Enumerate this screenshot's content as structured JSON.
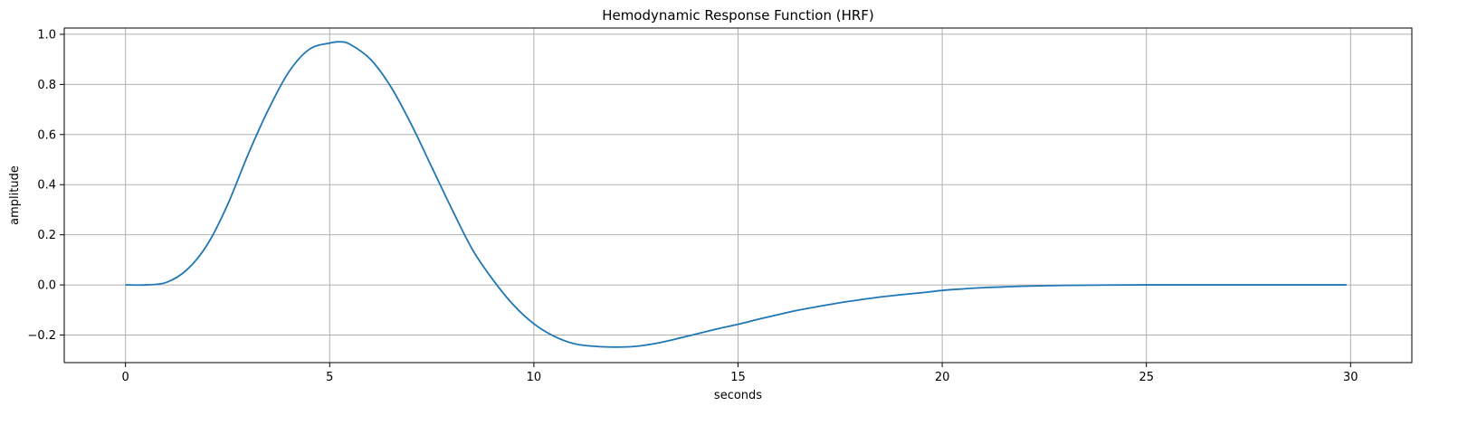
{
  "chart_data": {
    "type": "line",
    "title": "Hemodynamic Response Function (HRF)",
    "xlabel": "seconds",
    "ylabel": "amplitude",
    "xlim": [
      -1.5,
      31.5
    ],
    "ylim": [
      -0.31,
      1.025
    ],
    "xticks": [
      0,
      5,
      10,
      15,
      20,
      25,
      30
    ],
    "xtick_labels": [
      "0",
      "5",
      "10",
      "15",
      "20",
      "25",
      "30"
    ],
    "yticks": [
      -0.2,
      0.0,
      0.2,
      0.4,
      0.6,
      0.8,
      1.0
    ],
    "ytick_labels": [
      "−0.2",
      "0.0",
      "0.2",
      "0.4",
      "0.6",
      "0.8",
      "1.0"
    ],
    "grid": true,
    "line_color": "#1f77b4",
    "grid_color": "#b0b0b0",
    "series": [
      {
        "x": [
          0,
          0.5,
          1,
          1.5,
          2,
          2.5,
          3,
          3.5,
          4,
          4.5,
          5,
          5.25,
          5.5,
          6,
          6.5,
          7,
          7.5,
          8,
          8.5,
          9,
          9.5,
          10,
          10.5,
          11,
          11.5,
          12,
          12.5,
          13,
          13.5,
          14,
          14.5,
          15,
          15.5,
          16,
          16.5,
          17,
          17.5,
          18,
          18.5,
          19,
          19.5,
          20,
          20.5,
          21,
          21.5,
          22,
          23,
          24,
          25,
          26,
          27,
          28,
          29,
          29.9
        ],
        "y": [
          0.0,
          0.0,
          0.01,
          0.06,
          0.16,
          0.32,
          0.52,
          0.7,
          0.85,
          0.94,
          0.965,
          0.97,
          0.96,
          0.9,
          0.79,
          0.64,
          0.47,
          0.3,
          0.14,
          0.02,
          -0.08,
          -0.155,
          -0.205,
          -0.235,
          -0.245,
          -0.248,
          -0.245,
          -0.233,
          -0.215,
          -0.195,
          -0.175,
          -0.157,
          -0.137,
          -0.118,
          -0.1,
          -0.085,
          -0.071,
          -0.059,
          -0.048,
          -0.039,
          -0.031,
          -0.022,
          -0.016,
          -0.011,
          -0.008,
          -0.005,
          -0.002,
          -0.0005,
          0.0,
          0.0,
          0.0,
          0.0,
          0.0,
          0.0
        ]
      }
    ]
  }
}
